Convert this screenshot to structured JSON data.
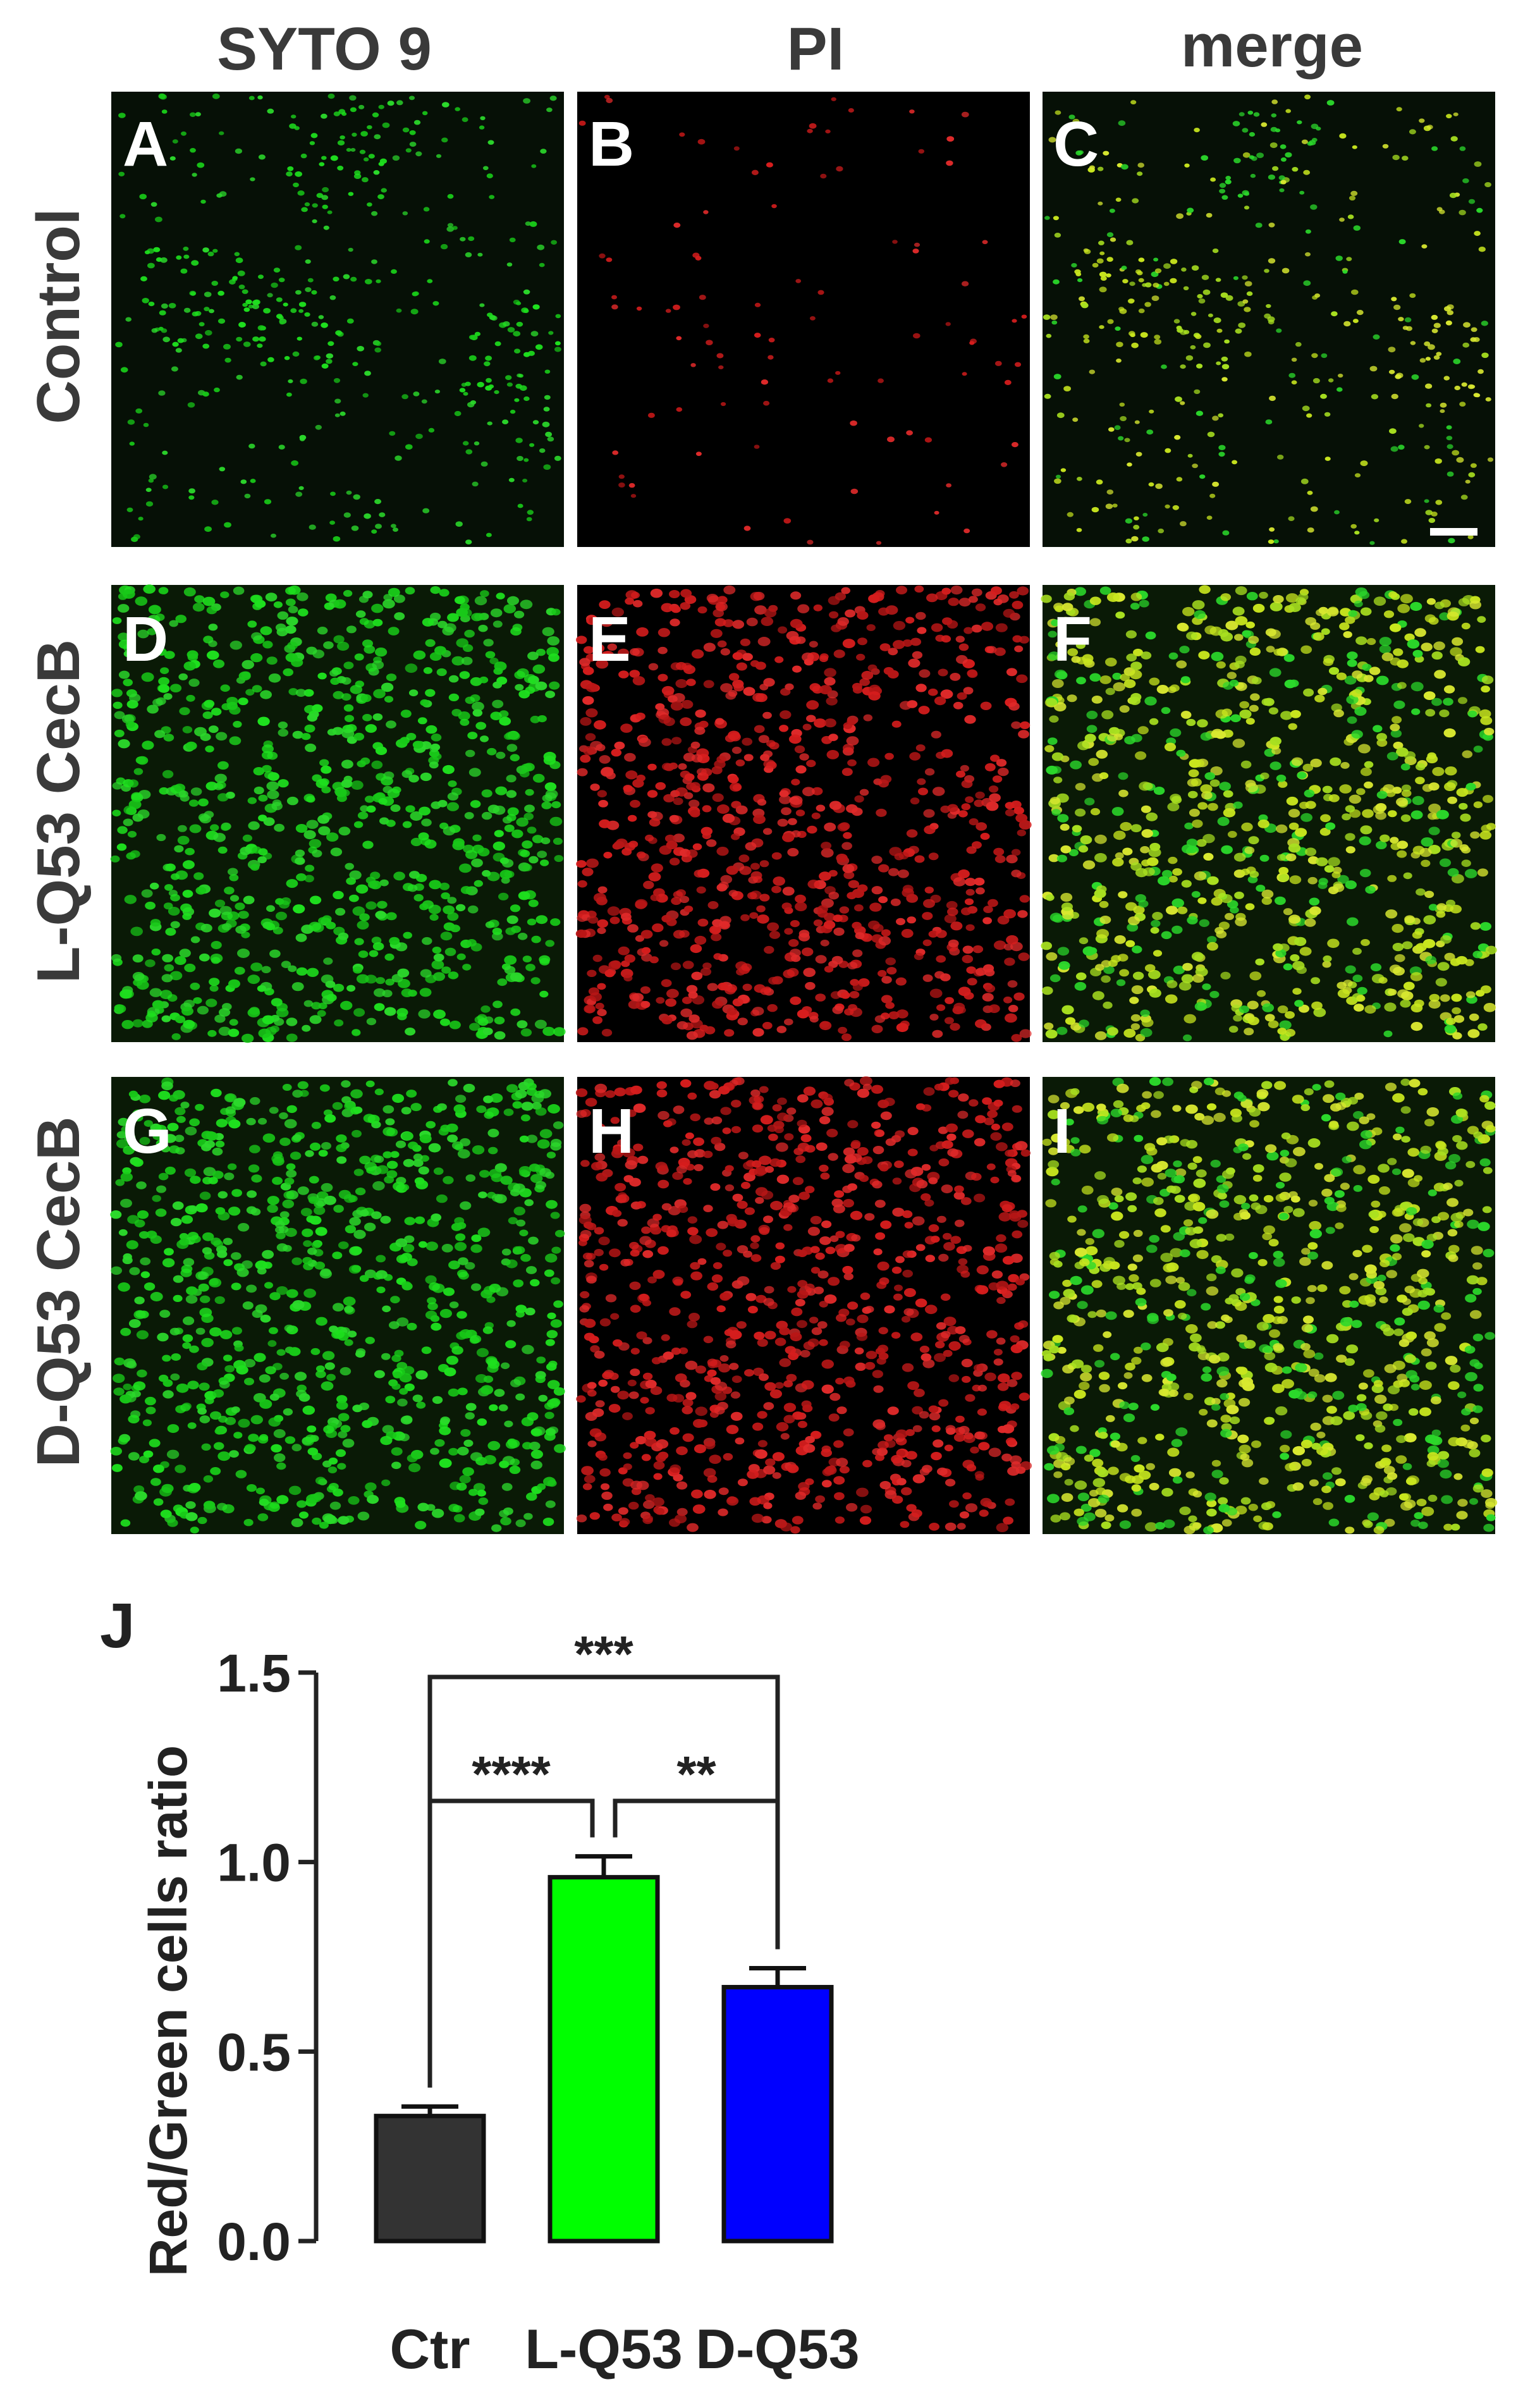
{
  "columns": [
    "SYTO 9",
    "PI",
    "merge"
  ],
  "rows": [
    "Control",
    "L-Q53 CecB",
    "D-Q53 CecB"
  ],
  "panels": [
    {
      "letter": "A",
      "channel": "green",
      "density": "sparse"
    },
    {
      "letter": "B",
      "channel": "red",
      "density": "sparse"
    },
    {
      "letter": "C",
      "channel": "merge",
      "density": "sparse"
    },
    {
      "letter": "D",
      "channel": "green",
      "density": "dense"
    },
    {
      "letter": "E",
      "channel": "red",
      "density": "dense"
    },
    {
      "letter": "F",
      "channel": "merge",
      "density": "dense"
    },
    {
      "letter": "G",
      "channel": "green",
      "density": "dense"
    },
    {
      "letter": "H",
      "channel": "red",
      "density": "dense"
    },
    {
      "letter": "I",
      "channel": "merge",
      "density": "dense"
    }
  ],
  "colors": {
    "green": "#22dd22",
    "red": "#dd2222",
    "yellow": "#c8e61e",
    "bar_ctr": "#333333",
    "bar_l": "#00ff00",
    "bar_d": "#0000ff"
  },
  "chart_data": {
    "type": "bar",
    "panel_label": "J",
    "categories": [
      "Ctr",
      "L-Q53",
      "D-Q53"
    ],
    "values": [
      0.33,
      0.96,
      0.67
    ],
    "errors": [
      0.025,
      0.055,
      0.05
    ],
    "colors": [
      "#333333",
      "#00ff00",
      "#0000ff"
    ],
    "ylabel": "Red/Green cells ratio",
    "ylim": [
      0,
      1.5
    ],
    "yticks": [
      "0.0",
      "0.5",
      "1.0",
      "1.5"
    ],
    "significance": [
      {
        "from": "Ctr",
        "to": "D-Q53",
        "label": "***"
      },
      {
        "from": "Ctr",
        "to": "L-Q53",
        "label": "****"
      },
      {
        "from": "L-Q53",
        "to": "D-Q53",
        "label": "**"
      }
    ]
  }
}
